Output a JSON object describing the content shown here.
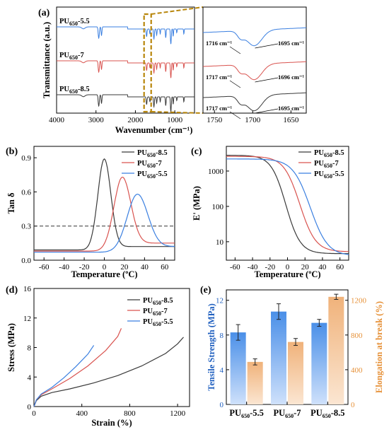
{
  "colors": {
    "black": "#3a3a3a",
    "red": "#d9534f",
    "blue": "#3a7fe0",
    "bar_blue": "#4a8fe8",
    "bar_orange": "#f0b27a",
    "ylabel_orange": "#e69138",
    "ylabel_blue": "#1f5fbf",
    "zoom_box": "#b8860b"
  },
  "chart_data": [
    {
      "panel": "(a)",
      "type": "line",
      "title": "",
      "xlabel": "Wavenumber (cm⁻¹)",
      "ylabel": "Transmittance (a.u.)",
      "xlim": [
        4000,
        500
      ],
      "xticks": [
        "4000",
        "3000",
        "2000",
        "1000"
      ],
      "series": [
        {
          "name": "PU650-5.5",
          "sub": "650",
          "base": "PU",
          "suffix": "-5.5",
          "color": "blue"
        },
        {
          "name": "PU650-7",
          "sub": "650",
          "base": "PU",
          "suffix": "-7",
          "color": "red"
        },
        {
          "name": "PU650-8.5",
          "sub": "650",
          "base": "PU",
          "suffix": "-8.5",
          "color": "black"
        }
      ],
      "inset": {
        "xlim": [
          1765,
          1630
        ],
        "xticks": [
          "1750",
          "1700",
          "1650"
        ],
        "annotations": [
          {
            "left": "1716 cm⁻¹",
            "right": "1695 cm⁻¹"
          },
          {
            "left": "1717 cm⁻¹",
            "right": "1696 cm⁻¹"
          },
          {
            "left": "1717 cm⁻¹",
            "right": "1695 cm⁻¹"
          }
        ]
      }
    },
    {
      "panel": "(b)",
      "type": "line",
      "xlabel": "Temperature (ºC)",
      "ylabel": "Tan δ",
      "xlim": [
        -70,
        70
      ],
      "ylim": [
        0,
        1.0
      ],
      "xticks": [
        -60,
        -40,
        -20,
        0,
        20,
        40,
        60
      ],
      "yticks": [
        "0.0",
        "0.3",
        "0.6",
        "0.9"
      ],
      "reference_line": 0.3,
      "legend": "top-right",
      "series": [
        {
          "name": "PU650-8.5",
          "suffix": "-8.5",
          "color": "black",
          "peak_x": 0,
          "peak_y": 0.89,
          "width": 10,
          "base_left": 0.09,
          "base_right": 0.12
        },
        {
          "name": "PU650-7",
          "suffix": "-7",
          "color": "red",
          "peak_x": 18,
          "peak_y": 0.73,
          "width": 13,
          "base_left": 0.08,
          "base_right": 0.15
        },
        {
          "name": "PU650-5.5",
          "suffix": "-5.5",
          "color": "blue",
          "peak_x": 33,
          "peak_y": 0.58,
          "width": 16,
          "base_left": 0.07,
          "base_right": 0.12
        }
      ]
    },
    {
      "panel": "(c)",
      "type": "line",
      "xlabel": "Temperature (ºC)",
      "ylabel": "E' (MPa)",
      "xlim": [
        -70,
        70
      ],
      "ylim_log": [
        3,
        5000
      ],
      "xticks": [
        -60,
        -40,
        -20,
        0,
        20,
        40,
        60
      ],
      "yticks": [
        "10",
        "100",
        "1000"
      ],
      "legend": "top-right",
      "series": [
        {
          "name": "PU650-8.5",
          "suffix": "-8.5",
          "color": "black",
          "start": 2800,
          "end": 4.6,
          "mid": -2,
          "k": 0.12
        },
        {
          "name": "PU650-7",
          "suffix": "-7",
          "color": "red",
          "start": 2600,
          "end": 5.2,
          "mid": 14,
          "k": 0.11
        },
        {
          "name": "PU650-5.5",
          "suffix": "-5.5",
          "color": "blue",
          "start": 2200,
          "end": 4.0,
          "mid": 26,
          "k": 0.1
        }
      ]
    },
    {
      "panel": "(d)",
      "type": "line",
      "xlabel": "Strain (%)",
      "ylabel": "Stress (MPa)",
      "xlim": [
        0,
        1300
      ],
      "ylim": [
        0,
        16
      ],
      "xticks": [
        0,
        400,
        800,
        1200
      ],
      "yticks": [
        0,
        4,
        8,
        12,
        16
      ],
      "legend": "top-right",
      "series": [
        {
          "name": "PU650-8.5",
          "suffix": "-8.5",
          "color": "black",
          "x": [
            0,
            20,
            60,
            150,
            300,
            500,
            700,
            900,
            1100,
            1200,
            1250
          ],
          "y": [
            0,
            0.8,
            1.4,
            1.9,
            2.4,
            3.2,
            4.2,
            5.5,
            7.2,
            8.5,
            9.4
          ]
        },
        {
          "name": "PU650-7",
          "suffix": "-7",
          "color": "red",
          "x": [
            0,
            20,
            60,
            150,
            300,
            450,
            600,
            700,
            730
          ],
          "y": [
            0,
            0.9,
            1.6,
            2.4,
            3.8,
            5.5,
            7.6,
            9.5,
            10.6
          ]
        },
        {
          "name": "PU650-5.5",
          "suffix": "-5.5",
          "color": "blue",
          "x": [
            0,
            20,
            60,
            150,
            250,
            350,
            450,
            500
          ],
          "y": [
            0,
            0.9,
            1.7,
            2.6,
            3.9,
            5.4,
            7.1,
            8.3
          ]
        }
      ]
    },
    {
      "panel": "(e)",
      "type": "bar",
      "ylabel": "Tensile Strength (MPa)",
      "ylabel_right": "Elongation at break (%)",
      "ylim": [
        0,
        13.2
      ],
      "ylim_right": [
        0,
        1320
      ],
      "yticks": [
        0,
        4,
        8,
        12
      ],
      "yticks_right": [
        0,
        400,
        800,
        1200
      ],
      "categories": [
        {
          "base": "PU",
          "sub": "650",
          "suffix": "-5.5"
        },
        {
          "base": "PU",
          "sub": "650",
          "suffix": "-7"
        },
        {
          "base": "PU",
          "sub": "650",
          "suffix": "-8.5"
        }
      ],
      "series": [
        {
          "name": "Tensile Strength",
          "axis": "left",
          "values": [
            8.3,
            10.7,
            9.4
          ],
          "errors": [
            0.9,
            0.9,
            0.4
          ]
        },
        {
          "name": "Elongation at break",
          "axis": "right",
          "values": [
            490,
            720,
            1240
          ],
          "errors": [
            35,
            40,
            30
          ]
        }
      ]
    }
  ]
}
